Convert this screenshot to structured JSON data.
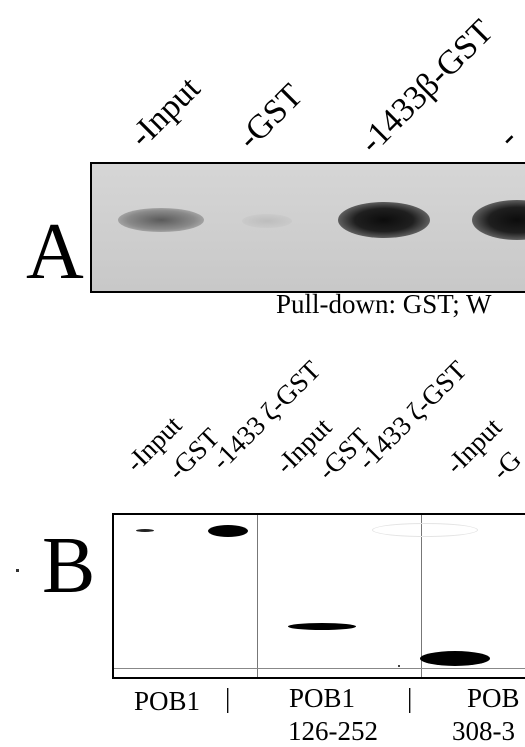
{
  "panel_a": {
    "letter": "A",
    "lanes": [
      "-Input",
      "-GST",
      "-1433β-GST",
      "-"
    ],
    "caption": "Pull-down: GST; W"
  },
  "panel_b": {
    "letter": "B",
    "lanes": [
      "-Input",
      "-GST",
      "-1433 ζ-GST",
      "-Input",
      "-GST",
      "-1433 ζ-GST",
      "-Input",
      "-G"
    ],
    "groups": [
      "POB1",
      "POB1",
      "POB"
    ],
    "group_dividers": [
      "|",
      "|"
    ],
    "subranges": [
      "126-252",
      "308-3"
    ]
  }
}
